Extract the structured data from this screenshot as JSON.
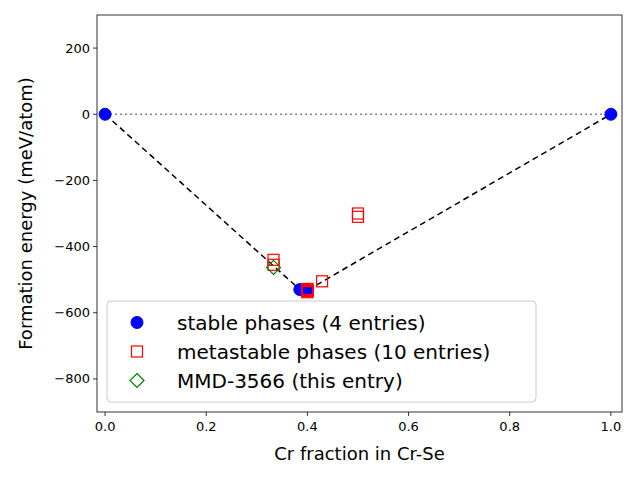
{
  "chart_data": {
    "type": "scatter",
    "x_label": "Cr fraction in Cr-Se",
    "y_label": "Formation energy (meV/atom)",
    "xlim": [
      -0.016,
      1.022
    ],
    "ylim": [
      -900,
      300
    ],
    "xticks": [
      {
        "value": 0,
        "label": "0.0"
      },
      {
        "value": 0.2,
        "label": "0.2"
      },
      {
        "value": 0.4,
        "label": "0.4"
      },
      {
        "value": 0.6,
        "label": "0.6"
      },
      {
        "value": 0.8,
        "label": "0.8"
      },
      {
        "value": 1,
        "label": "1.0"
      }
    ],
    "yticks": [
      {
        "value": -800,
        "label": "−800"
      },
      {
        "value": -600,
        "label": "−600"
      },
      {
        "value": -400,
        "label": "−400"
      },
      {
        "value": -200,
        "label": "−200"
      },
      0,
      200
    ],
    "legend": "lower left",
    "grid": false,
    "series": [
      {
        "type": "line",
        "line_style": "dotted",
        "color": "#808080",
        "x": [
          0,
          1
        ],
        "values": [
          0,
          0
        ]
      },
      {
        "type": "line",
        "line_style": "dashed",
        "color": "#000000",
        "x": [
          0,
          0.385,
          0.4,
          1
        ],
        "values": [
          0,
          -530,
          -532,
          0
        ]
      },
      {
        "name": "stable phases (4 entries)",
        "type": "scatter",
        "marker": "circle",
        "color": "#0000ff",
        "x": [
          0,
          0.385,
          0.4,
          1
        ],
        "values": [
          0,
          -530,
          -532,
          0
        ]
      },
      {
        "name": "metastable phases (10 entries)",
        "type": "scatter",
        "marker": "square",
        "color": "#ff0000",
        "x": [
          0.333,
          0.333,
          0.4,
          0.4,
          0.4,
          0.4,
          0.4,
          0.429,
          0.5,
          0.5
        ],
        "values": [
          -440,
          -455,
          -528,
          -533,
          -538,
          -530,
          -535,
          -505,
          -300,
          -310
        ]
      },
      {
        "name": "MMD-3566 (this entry)",
        "type": "scatter",
        "marker": "diamond",
        "color": "#008000",
        "x": [
          0.333
        ],
        "values": [
          -463
        ]
      }
    ]
  }
}
